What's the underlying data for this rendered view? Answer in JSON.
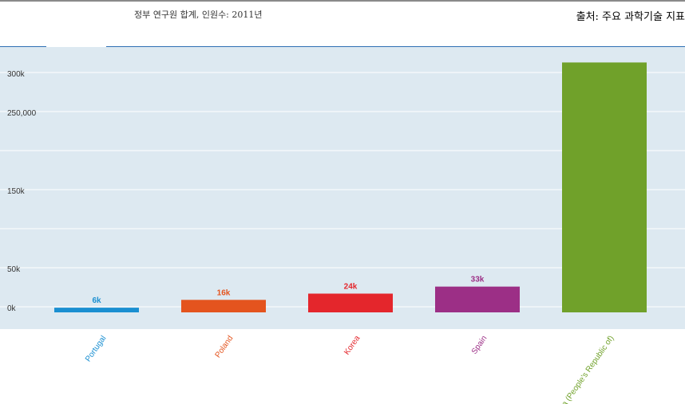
{
  "header": {
    "title": "정부 연구원 합계, 인원수: 2011년",
    "source": "출처: 주요 과학기술 지표"
  },
  "colors": {
    "plot_background": "#dde9f1",
    "accent": "#2f6fb3",
    "bars": [
      "#1a8fd1",
      "#e4541e",
      "#e4262c",
      "#9c2f86",
      "#70a12a"
    ]
  },
  "chart_data": {
    "type": "bar",
    "title": "정부 연구원 합계, 인원수: 2011년",
    "categories": [
      "Portugal",
      "Poland",
      "Korea",
      "Spain",
      "China (People's Republic of)"
    ],
    "values": [
      6000,
      16000,
      24000,
      33000,
      320000
    ],
    "data_labels": [
      "6k",
      "16k",
      "24k",
      "33k",
      ""
    ],
    "y_ticks": [
      {
        "value": 0,
        "label": "0k"
      },
      {
        "value": 50000,
        "label": "50k"
      },
      {
        "value": 100000,
        "label": ""
      },
      {
        "value": 150000,
        "label": "150k"
      },
      {
        "value": 200000,
        "label": ""
      },
      {
        "value": 250000,
        "label": "250,000"
      },
      {
        "value": 300000,
        "label": "300k"
      }
    ],
    "ylim": [
      0,
      320000
    ],
    "grid": true,
    "xlabel": "",
    "ylabel": ""
  }
}
